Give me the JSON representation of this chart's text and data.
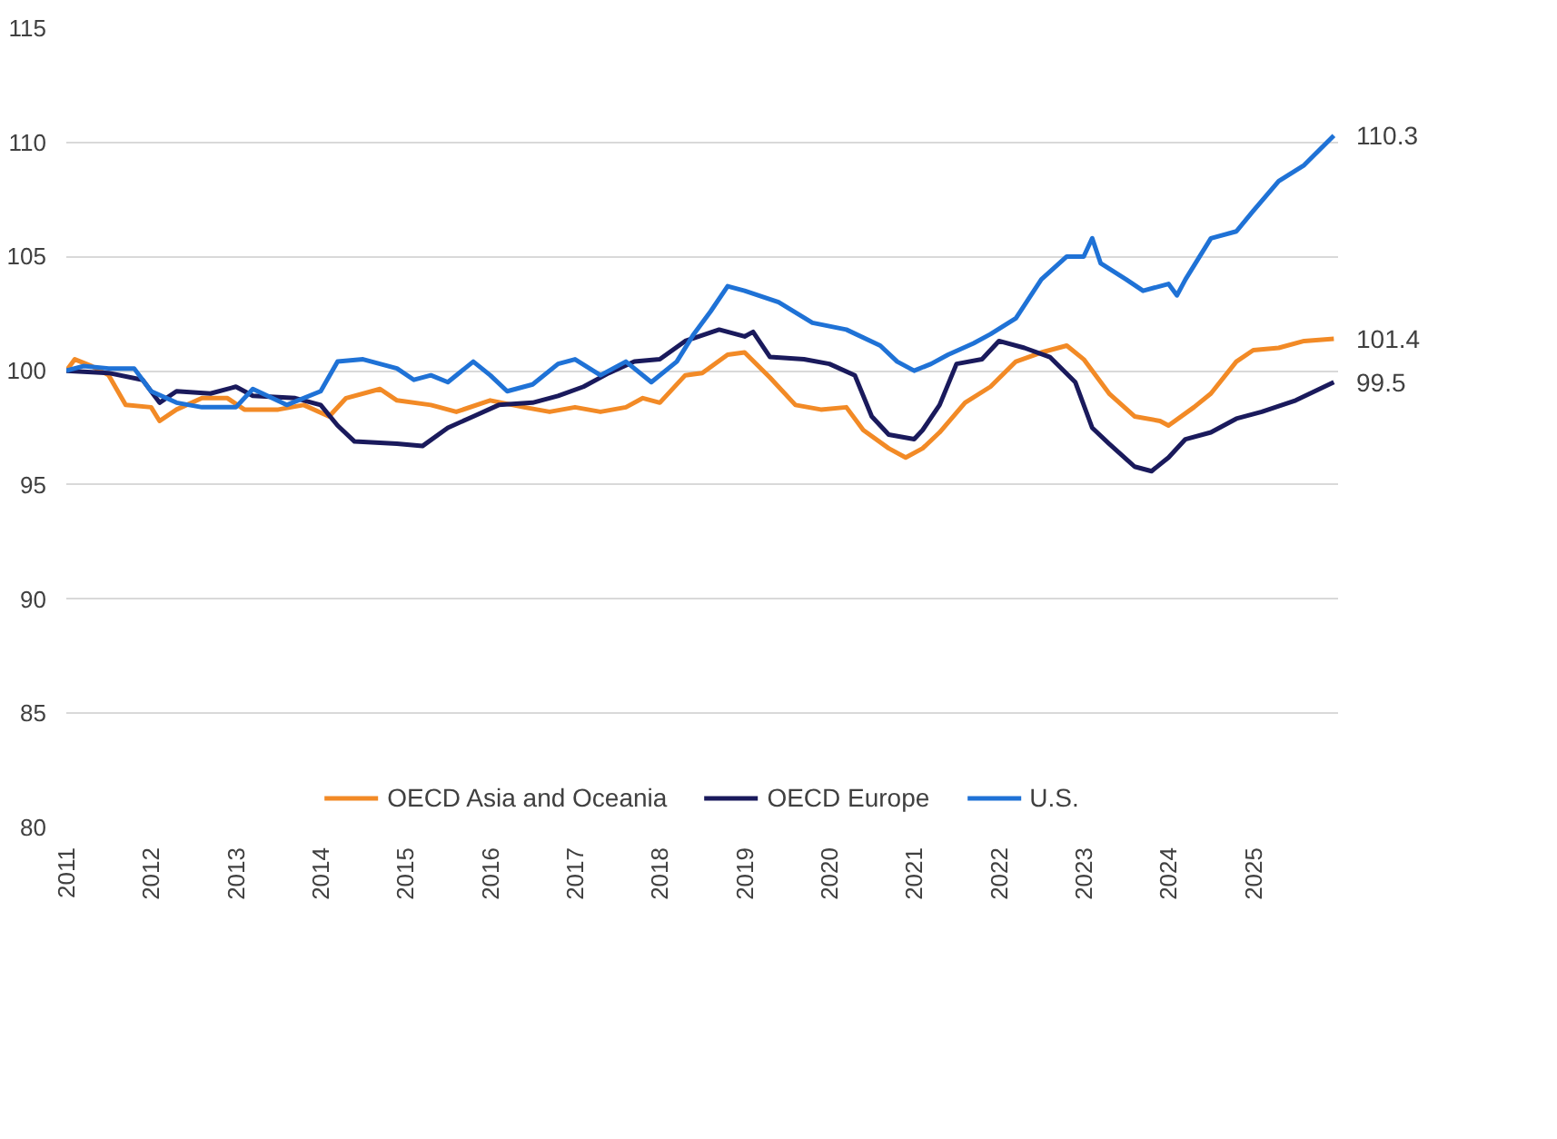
{
  "chart_data": {
    "type": "line",
    "ylim": [
      80,
      115
    ],
    "yticks": [
      80,
      85,
      90,
      95,
      100,
      105,
      110,
      115
    ],
    "xlim": [
      2011,
      2026
    ],
    "xticks": [
      2011,
      2012,
      2013,
      2014,
      2015,
      2016,
      2017,
      2018,
      2019,
      2020,
      2021,
      2022,
      2023,
      2024,
      2025
    ],
    "grid": "y",
    "legend": "bottom",
    "marker": "none",
    "line_style": "solid",
    "series": [
      {
        "name": "OECD Asia and Oceania",
        "color": "#f28a26",
        "x": [
          2011.0,
          2011.1,
          2011.3,
          2011.5,
          2011.7,
          2012.0,
          2012.1,
          2012.3,
          2012.6,
          2012.9,
          2013.1,
          2013.5,
          2013.8,
          2014.1,
          2014.3,
          2014.7,
          2014.9,
          2015.3,
          2015.6,
          2016.0,
          2016.4,
          2016.7,
          2017.0,
          2017.3,
          2017.6,
          2017.8,
          2018.0,
          2018.3,
          2018.5,
          2018.8,
          2019.0,
          2019.3,
          2019.6,
          2019.9,
          2020.2,
          2020.4,
          2020.7,
          2020.9,
          2021.1,
          2021.3,
          2021.6,
          2021.9,
          2022.2,
          2022.5,
          2022.8,
          2023.0,
          2023.3,
          2023.6,
          2023.9,
          2024.0,
          2024.3,
          2024.5,
          2024.8,
          2025.0,
          2025.3,
          2025.6,
          2025.95
        ],
        "values": [
          100,
          100.5,
          100.2,
          99.8,
          98.5,
          98.4,
          97.8,
          98.3,
          98.8,
          98.8,
          98.3,
          98.3,
          98.5,
          98.0,
          98.8,
          99.2,
          98.7,
          98.5,
          98.2,
          98.7,
          98.4,
          98.2,
          98.4,
          98.2,
          98.4,
          98.8,
          98.6,
          99.8,
          99.9,
          100.7,
          100.8,
          99.7,
          98.5,
          98.3,
          98.4,
          97.4,
          96.6,
          96.2,
          96.6,
          97.3,
          98.6,
          99.3,
          100.4,
          100.8,
          101.1,
          100.5,
          99.0,
          98.0,
          97.8,
          97.6,
          98.4,
          99.0,
          100.4,
          100.9,
          101.0,
          101.3,
          101.4
        ]
      },
      {
        "name": "OECD Europe",
        "color": "#1a1a5c",
        "x": [
          2011.0,
          2011.5,
          2011.9,
          2012.1,
          2012.3,
          2012.7,
          2013.0,
          2013.2,
          2013.7,
          2014.0,
          2014.2,
          2014.4,
          2014.9,
          2015.2,
          2015.5,
          2015.8,
          2016.1,
          2016.5,
          2016.8,
          2017.1,
          2017.4,
          2017.7,
          2018.0,
          2018.3,
          2018.7,
          2019.0,
          2019.1,
          2019.3,
          2019.7,
          2020.0,
          2020.3,
          2020.5,
          2020.7,
          2021.0,
          2021.1,
          2021.3,
          2021.5,
          2021.8,
          2022.0,
          2022.3,
          2022.6,
          2022.9,
          2023.1,
          2023.3,
          2023.6,
          2023.8,
          2024.0,
          2024.2,
          2024.5,
          2024.8,
          2025.1,
          2025.5,
          2025.95
        ],
        "values": [
          100,
          99.9,
          99.6,
          98.6,
          99.1,
          99.0,
          99.3,
          98.9,
          98.8,
          98.5,
          97.6,
          96.9,
          96.8,
          96.7,
          97.5,
          98.0,
          98.5,
          98.6,
          98.9,
          99.3,
          99.9,
          100.4,
          100.5,
          101.3,
          101.8,
          101.5,
          101.7,
          100.6,
          100.5,
          100.3,
          99.8,
          98.0,
          97.2,
          97.0,
          97.4,
          98.5,
          100.3,
          100.5,
          101.3,
          101.0,
          100.6,
          99.5,
          97.5,
          96.8,
          95.8,
          95.6,
          96.2,
          97.0,
          97.3,
          97.9,
          98.2,
          98.7,
          99.5
        ]
      },
      {
        "name": "U.S.",
        "color": "#1f72d6",
        "x": [
          2011.0,
          2011.2,
          2011.5,
          2011.8,
          2012.0,
          2012.3,
          2012.6,
          2013.0,
          2013.2,
          2013.6,
          2014.0,
          2014.2,
          2014.5,
          2014.9,
          2015.1,
          2015.3,
          2015.5,
          2015.8,
          2016.0,
          2016.2,
          2016.5,
          2016.8,
          2017.0,
          2017.3,
          2017.6,
          2017.9,
          2018.2,
          2018.4,
          2018.6,
          2018.8,
          2019.0,
          2019.4,
          2019.8,
          2020.2,
          2020.6,
          2020.8,
          2021.0,
          2021.2,
          2021.4,
          2021.7,
          2021.9,
          2022.2,
          2022.5,
          2022.8,
          2023.0,
          2023.1,
          2023.2,
          2023.5,
          2023.7,
          2024.0,
          2024.1,
          2024.2,
          2024.5,
          2024.8,
          2025.0,
          2025.3,
          2025.6,
          2025.95
        ],
        "values": [
          100,
          100.2,
          100.1,
          100.1,
          99.1,
          98.6,
          98.4,
          98.4,
          99.2,
          98.5,
          99.1,
          100.4,
          100.5,
          100.1,
          99.6,
          99.8,
          99.5,
          100.4,
          99.8,
          99.1,
          99.4,
          100.3,
          100.5,
          99.8,
          100.4,
          99.5,
          100.4,
          101.6,
          102.6,
          103.7,
          103.5,
          103.0,
          102.1,
          101.8,
          101.1,
          100.4,
          100.0,
          100.3,
          100.7,
          101.2,
          101.6,
          102.3,
          104.0,
          105.0,
          105.0,
          105.8,
          104.7,
          104.0,
          103.5,
          103.8,
          103.3,
          104.0,
          105.8,
          106.1,
          107.0,
          108.3,
          109.0,
          110.3
        ]
      }
    ],
    "annotations": [
      "101.4",
      "99.5",
      "110.3"
    ]
  }
}
